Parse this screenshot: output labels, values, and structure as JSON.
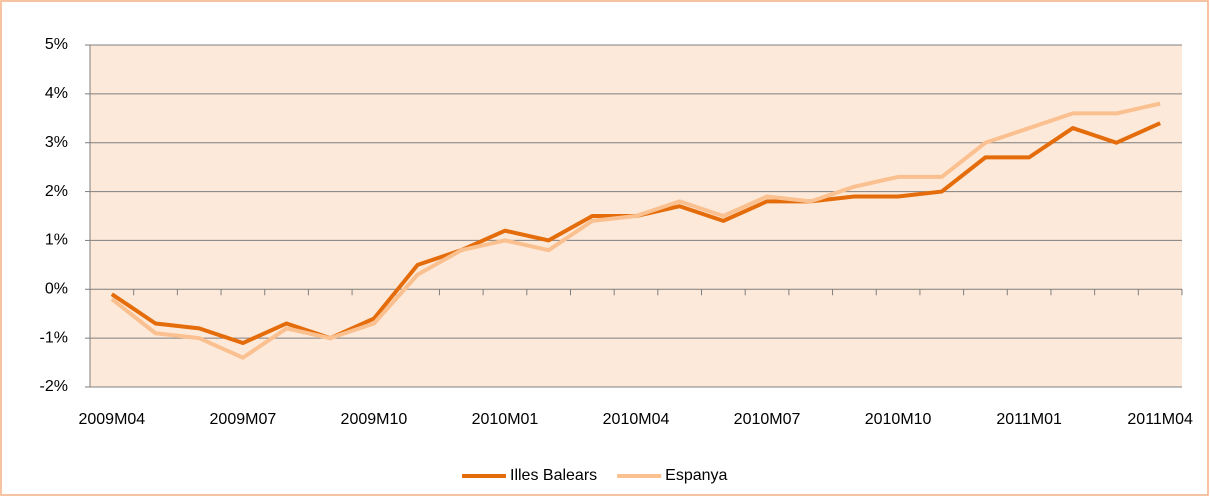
{
  "chart_data": {
    "type": "line",
    "categories": [
      "2009M04",
      null,
      null,
      "2009M07",
      null,
      null,
      "2009M10",
      null,
      null,
      "2010M01",
      null,
      null,
      "2010M04",
      null,
      null,
      "2010M07",
      null,
      null,
      "2010M10",
      null,
      null,
      "2011M01",
      null,
      null,
      "2011M04"
    ],
    "series": [
      {
        "name": "Illes Balears",
        "color": "#e46c0a",
        "values": [
          -0.1,
          -0.7,
          -0.8,
          -1.1,
          -0.7,
          -1.0,
          -0.6,
          0.5,
          0.8,
          1.2,
          1.0,
          1.5,
          1.5,
          1.7,
          1.4,
          1.8,
          1.8,
          1.9,
          1.9,
          2.0,
          2.7,
          2.7,
          3.3,
          3.0,
          3.4
        ]
      },
      {
        "name": "Espanya",
        "color": "#fac090",
        "values": [
          -0.2,
          -0.9,
          -1.0,
          -1.4,
          -0.8,
          -1.0,
          -0.7,
          0.3,
          0.8,
          1.0,
          0.8,
          1.4,
          1.5,
          1.8,
          1.5,
          1.9,
          1.8,
          2.1,
          2.3,
          2.3,
          3.0,
          3.3,
          3.6,
          3.6,
          3.8
        ]
      }
    ],
    "ylim": [
      -2,
      5
    ],
    "yticks": [
      {
        "value": -2,
        "label": "-2%"
      },
      {
        "value": -1,
        "label": "-1%"
      },
      {
        "value": 0,
        "label": "0%"
      },
      {
        "value": 1,
        "label": "1%"
      },
      {
        "value": 2,
        "label": "2%"
      },
      {
        "value": 3,
        "label": "3%"
      },
      {
        "value": 4,
        "label": "4%"
      },
      {
        "value": 5,
        "label": "5%"
      }
    ],
    "grid": true,
    "legend": "bottom",
    "plot_background": "#fde9d9"
  }
}
